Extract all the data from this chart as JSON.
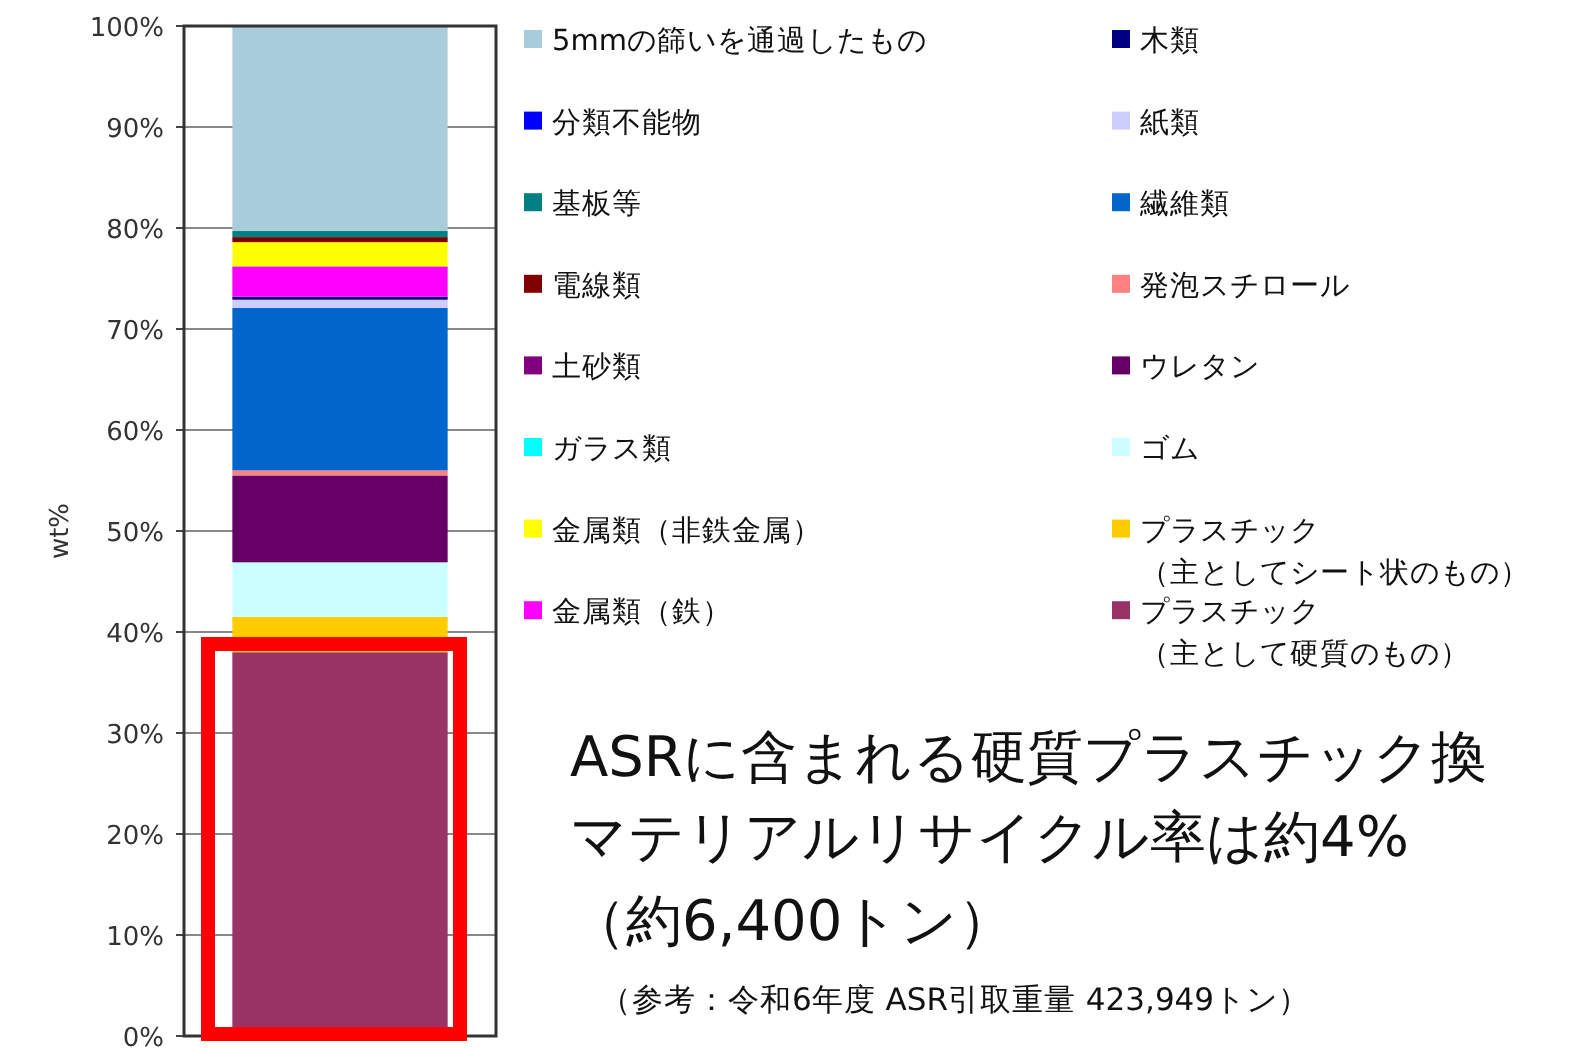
{
  "chart_data": {
    "type": "bar",
    "stacked": true,
    "ylabel": "wt%",
    "categories": [
      null
    ],
    "ylim": [
      0,
      100
    ],
    "yticks": [
      {
        "value": 0,
        "label": "0%"
      },
      {
        "value": 10,
        "label": "10%"
      },
      {
        "value": 20,
        "label": "20%"
      },
      {
        "value": 30,
        "label": "30%"
      },
      {
        "value": 40,
        "label": "40%"
      },
      {
        "value": 50,
        "label": "50%"
      },
      {
        "value": 60,
        "label": "60%"
      },
      {
        "value": 70,
        "label": "70%"
      },
      {
        "value": 80,
        "label": "80%"
      },
      {
        "value": 90,
        "label": "90%"
      },
      {
        "value": 100,
        "label": "100%"
      }
    ],
    "grid": "y",
    "bands": [
      {
        "axis": "y",
        "from": 0,
        "to": 39.5,
        "color": "#ff0000"
      }
    ],
    "legend": "right",
    "series": [
      {
        "name": "プラスチック（主として硬質のもの）",
        "color": "#993366",
        "values": [
          38.0
        ]
      },
      {
        "name": "プラスチック（主としてシート状のもの）",
        "color": "#ffcc00",
        "values": [
          3.5
        ]
      },
      {
        "name": "ゴム",
        "color": "#ccffff",
        "values": [
          5.4
        ]
      },
      {
        "name": "ウレタン",
        "color": "#660066",
        "values": [
          8.6
        ]
      },
      {
        "name": "発泡スチロール",
        "color": "#ff8080",
        "values": [
          0.5
        ]
      },
      {
        "name": "繊維類",
        "color": "#0066cc",
        "values": [
          16.1
        ]
      },
      {
        "name": "紙類",
        "color": "#ccccff",
        "values": [
          0.8
        ]
      },
      {
        "name": "木類",
        "color": "#000080",
        "values": [
          0.3
        ]
      },
      {
        "name": "金属類（鉄）",
        "color": "#ff00ff",
        "values": [
          3.0
        ]
      },
      {
        "name": "金属類（非鉄金属）",
        "color": "#ffff00",
        "values": [
          2.4
        ]
      },
      {
        "name": "ガラス類",
        "color": "#00ffff",
        "values": [
          0
        ]
      },
      {
        "name": "土砂類",
        "color": "#800080",
        "values": [
          0
        ]
      },
      {
        "name": "電線類",
        "color": "#800000",
        "values": [
          0.5
        ]
      },
      {
        "name": "基板等",
        "color": "#008080",
        "values": [
          0.6
        ]
      },
      {
        "name": "分類不能物",
        "color": "#0000ff",
        "values": [
          0
        ]
      },
      {
        "name": "5mmの篩いを通過したもの",
        "color": "#a9ccda",
        "values": [
          20.3
        ]
      }
    ],
    "annotations": [
      "ASRに含まれる硬質プラスチック換",
      "マテリアルリサイクル率は約4%",
      "（約6,400トン）",
      "（参考：令和6年度 ASR引取重量 423,949トン）"
    ]
  }
}
